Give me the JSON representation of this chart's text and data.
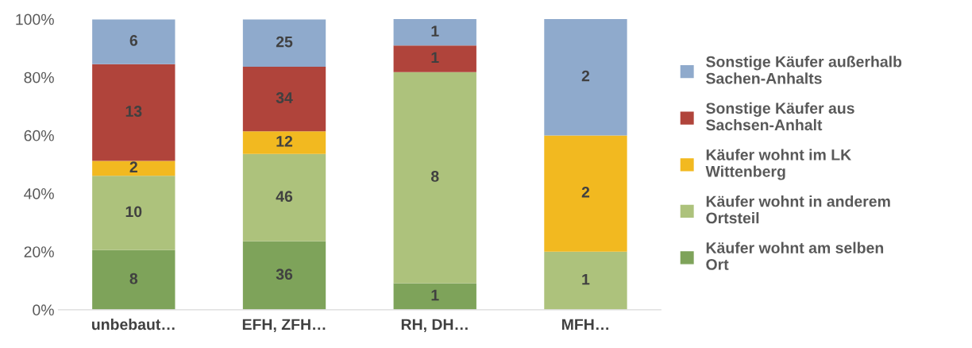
{
  "chart_data": {
    "type": "bar",
    "stacked": true,
    "categories": [
      "unbebaut…",
      "EFH, ZFH…",
      "RH, DH…",
      "MFH…"
    ],
    "series": [
      {
        "name": "Käufer wohnt am selben\nOrt",
        "color": "#7ea35a",
        "values": [
          20.5,
          23.5,
          9.1,
          0
        ]
      },
      {
        "name": "Käufer wohnt in anderem\nOrtsteil",
        "color": "#adc27c",
        "values": [
          25.6,
          30.1,
          72.7,
          20
        ]
      },
      {
        "name": "Käufer wohnt im LK\nWittenberg",
        "color": "#f2b920",
        "values": [
          5.1,
          7.8,
          0,
          40
        ]
      },
      {
        "name": "Sonstige Käufer aus\nSachsen-Anhalt",
        "color": "#b0443b",
        "values": [
          33.3,
          22.2,
          9.1,
          0
        ]
      },
      {
        "name": "Sonstige Käufer außerhalb\nSachen-Anhalts",
        "color": "#8faacc",
        "values": [
          15.4,
          16.3,
          9.1,
          40
        ]
      }
    ],
    "annotations": [
      {
        "text": "8",
        "x": "unbebaut…",
        "y": 20.5
      },
      {
        "text": "10",
        "x": "unbebaut…",
        "y": 46.1
      },
      {
        "text": "2",
        "x": "unbebaut…",
        "y": 51.2
      },
      {
        "text": "13",
        "x": "unbebaut…",
        "y": 84.5
      },
      {
        "text": "6",
        "x": "unbebaut…",
        "y": 99.9
      },
      {
        "text": "36",
        "x": "EFH, ZFH…",
        "y": 23.5
      },
      {
        "text": "46",
        "x": "EFH, ZFH…",
        "y": 53.6
      },
      {
        "text": "12",
        "x": "EFH, ZFH…",
        "y": 61.4
      },
      {
        "text": "34",
        "x": "EFH, ZFH…",
        "y": 83.6
      },
      {
        "text": "25",
        "x": "EFH, ZFH…",
        "y": 99.9
      },
      {
        "text": "1",
        "x": "RH, DH…",
        "y": 9.1
      },
      "8",
      {
        "text": "1",
        "x": "RH, DH…",
        "y": 90.9
      },
      {
        "text": "1",
        "x": "RH, DH…",
        "y": 100.0
      },
      {
        "text": "1",
        "x": "MFH…",
        "y": 20
      },
      "2",
      "2"
    ],
    "ylim": [
      0,
      100
    ],
    "yticks": [
      {
        "value": 0,
        "label": "0%"
      },
      {
        "value": 20,
        "label": "20%"
      },
      {
        "value": 40,
        "label": "40%"
      },
      {
        "value": 60,
        "label": "60%"
      },
      {
        "value": 80,
        "label": "80%"
      },
      {
        "value": 100,
        "label": "100%"
      }
    ],
    "grid": false,
    "legend": "right"
  }
}
